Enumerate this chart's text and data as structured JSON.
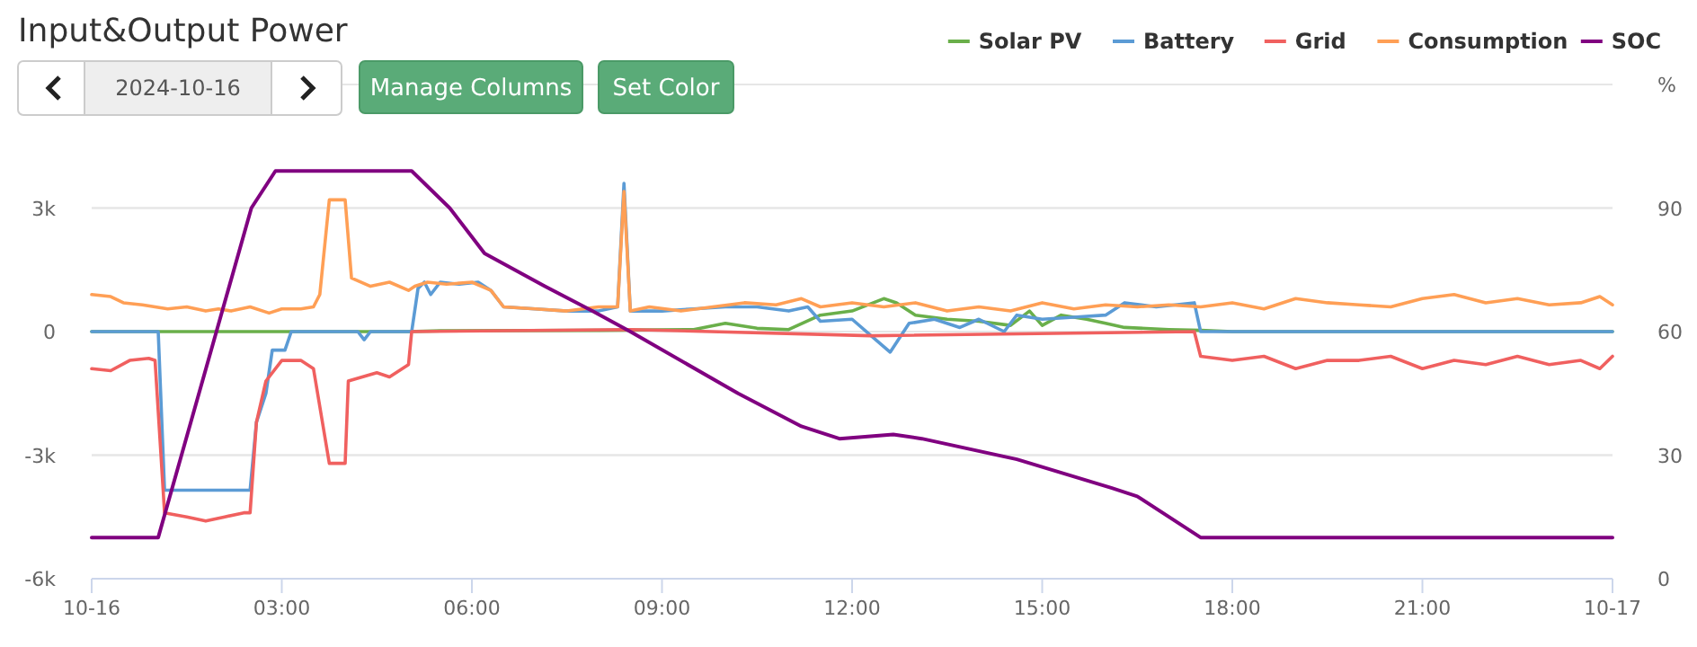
{
  "chart_data": {
    "type": "line",
    "title": "Input&Output Power",
    "y2label": "%",
    "annotations": [
      "2024-10-16",
      "Manage Columns",
      "Set Color"
    ],
    "xlim": [
      0,
      24
    ],
    "xticks": [
      {
        "value": 0,
        "label": "10-16"
      },
      {
        "value": 3,
        "label": "03:00"
      },
      {
        "value": 6,
        "label": "06:00"
      },
      {
        "value": 9,
        "label": "09:00"
      },
      {
        "value": 12,
        "label": "12:00"
      },
      {
        "value": 15,
        "label": "15:00"
      },
      {
        "value": 18,
        "label": "18:00"
      },
      {
        "value": 21,
        "label": "21:00"
      },
      {
        "value": 24,
        "label": "10-17"
      }
    ],
    "ylim": [
      -6000,
      6000
    ],
    "yticks": [
      {
        "value": -6000,
        "label": "-6k"
      },
      {
        "value": -3000,
        "label": "-3k"
      },
      0,
      {
        "value": 3000,
        "label": "3k"
      }
    ],
    "y2lim": [
      0,
      120
    ],
    "y2ticks": [
      0,
      30,
      60,
      90,
      {
        "value": 120,
        "label": null
      }
    ],
    "grid": "y",
    "legend": "top right",
    "marker": "none",
    "line_style": "solid",
    "series": [
      {
        "name": "Solar PV",
        "color": "#6aaf4a",
        "x": [
          0,
          5,
          5.5,
          8,
          9.5,
          10,
          10.5,
          11,
          11.5,
          12,
          12.5,
          12.7,
          13,
          13.5,
          14,
          14.5,
          14.8,
          15,
          15.3,
          15.7,
          16,
          16.3,
          17,
          17.5,
          18,
          24
        ],
        "values": [
          0,
          0,
          20,
          30,
          50,
          200,
          80,
          50,
          400,
          500,
          800,
          700,
          400,
          300,
          250,
          150,
          500,
          150,
          400,
          300,
          200,
          100,
          50,
          30,
          0,
          0
        ]
      },
      {
        "name": "Battery",
        "color": "#5b9bd5",
        "x": [
          0,
          1.05,
          1.15,
          2.5,
          2.6,
          2.75,
          2.85,
          3.05,
          3.15,
          4.2,
          4.3,
          4.4,
          5.05,
          5.15,
          5.25,
          5.35,
          5.5,
          5.8,
          6.1,
          6.3,
          6.5,
          7,
          7.5,
          8,
          8.3,
          8.4,
          8.5,
          9,
          9.5,
          10,
          10.5,
          11,
          11.3,
          11.5,
          12,
          12.3,
          12.6,
          12.9,
          13.3,
          13.7,
          14,
          14.4,
          14.6,
          15,
          15.5,
          16,
          16.3,
          16.8,
          17.4,
          17.5,
          24
        ],
        "values": [
          0,
          0,
          -3850,
          -3850,
          -2200,
          -1500,
          -450,
          -450,
          0,
          0,
          -200,
          0,
          0,
          1050,
          1200,
          900,
          1200,
          1150,
          1200,
          1000,
          600,
          550,
          500,
          500,
          600,
          3600,
          500,
          500,
          550,
          600,
          600,
          500,
          600,
          250,
          300,
          -100,
          -500,
          200,
          300,
          100,
          300,
          0,
          400,
          300,
          350,
          400,
          700,
          600,
          700,
          0,
          0
        ]
      },
      {
        "name": "Grid",
        "color": "#f0605f",
        "x": [
          0,
          0.3,
          0.6,
          0.9,
          1,
          1.15,
          1.5,
          1.8,
          2.1,
          2.4,
          2.5,
          2.6,
          2.75,
          3,
          3.3,
          3.5,
          3.75,
          4,
          4.05,
          4.5,
          4.7,
          5,
          5.05,
          8.5,
          12.3,
          17.4,
          17.5,
          18,
          18.5,
          19,
          19.5,
          20,
          20.5,
          21,
          21.5,
          22,
          22.5,
          23,
          23.5,
          23.8,
          24
        ],
        "values": [
          -900,
          -950,
          -700,
          -650,
          -700,
          -4400,
          -4500,
          -4600,
          -4500,
          -4400,
          -4400,
          -2200,
          -1200,
          -700,
          -700,
          -900,
          -3200,
          -3200,
          -1200,
          -1000,
          -1100,
          -800,
          0,
          50,
          -100,
          0,
          -600,
          -700,
          -600,
          -900,
          -700,
          -700,
          -600,
          -900,
          -700,
          -800,
          -600,
          -800,
          -700,
          -900,
          -600
        ]
      },
      {
        "name": "Consumption",
        "color": "#ff9f55",
        "x": [
          0,
          0.3,
          0.5,
          0.8,
          1,
          1.2,
          1.5,
          1.8,
          2,
          2.2,
          2.5,
          2.8,
          3,
          3.3,
          3.5,
          3.6,
          3.75,
          4,
          4.1,
          4.4,
          4.7,
          5,
          5.1,
          5.3,
          5.6,
          6,
          6.3,
          6.5,
          7,
          7.5,
          8,
          8.3,
          8.4,
          8.5,
          8.8,
          9.3,
          9.8,
          10.3,
          10.8,
          11.2,
          11.5,
          12,
          12.5,
          13,
          13.5,
          14,
          14.5,
          15,
          15.5,
          16,
          16.5,
          17,
          17.5,
          18,
          18.5,
          19,
          19.5,
          20,
          20.5,
          21,
          21.5,
          22,
          22.5,
          23,
          23.5,
          23.8,
          24
        ],
        "values": [
          900,
          850,
          700,
          650,
          600,
          550,
          600,
          500,
          550,
          500,
          600,
          450,
          550,
          550,
          600,
          900,
          3200,
          3200,
          1300,
          1100,
          1200,
          1000,
          1100,
          1200,
          1150,
          1200,
          1000,
          600,
          550,
          500,
          600,
          600,
          3400,
          500,
          600,
          500,
          600,
          700,
          650,
          800,
          600,
          700,
          600,
          700,
          500,
          600,
          500,
          700,
          550,
          650,
          600,
          650,
          600,
          700,
          550,
          800,
          700,
          650,
          600,
          800,
          900,
          700,
          800,
          650,
          700,
          850,
          650
        ]
      },
      {
        "name": "SOC",
        "color": "#800080",
        "axis": "y2",
        "x": [
          0,
          1.05,
          2.52,
          2.9,
          5.05,
          5.65,
          6.2,
          7.15,
          7.9,
          8.5,
          10.2,
          11.2,
          11.8,
          12.65,
          13.1,
          14.6,
          16.1,
          16.5,
          17.5,
          24
        ],
        "values": [
          10,
          10,
          90,
          99,
          99,
          90,
          79,
          71,
          65,
          60,
          45,
          37,
          34,
          35,
          34,
          29,
          22,
          20,
          10,
          10
        ]
      }
    ]
  }
}
